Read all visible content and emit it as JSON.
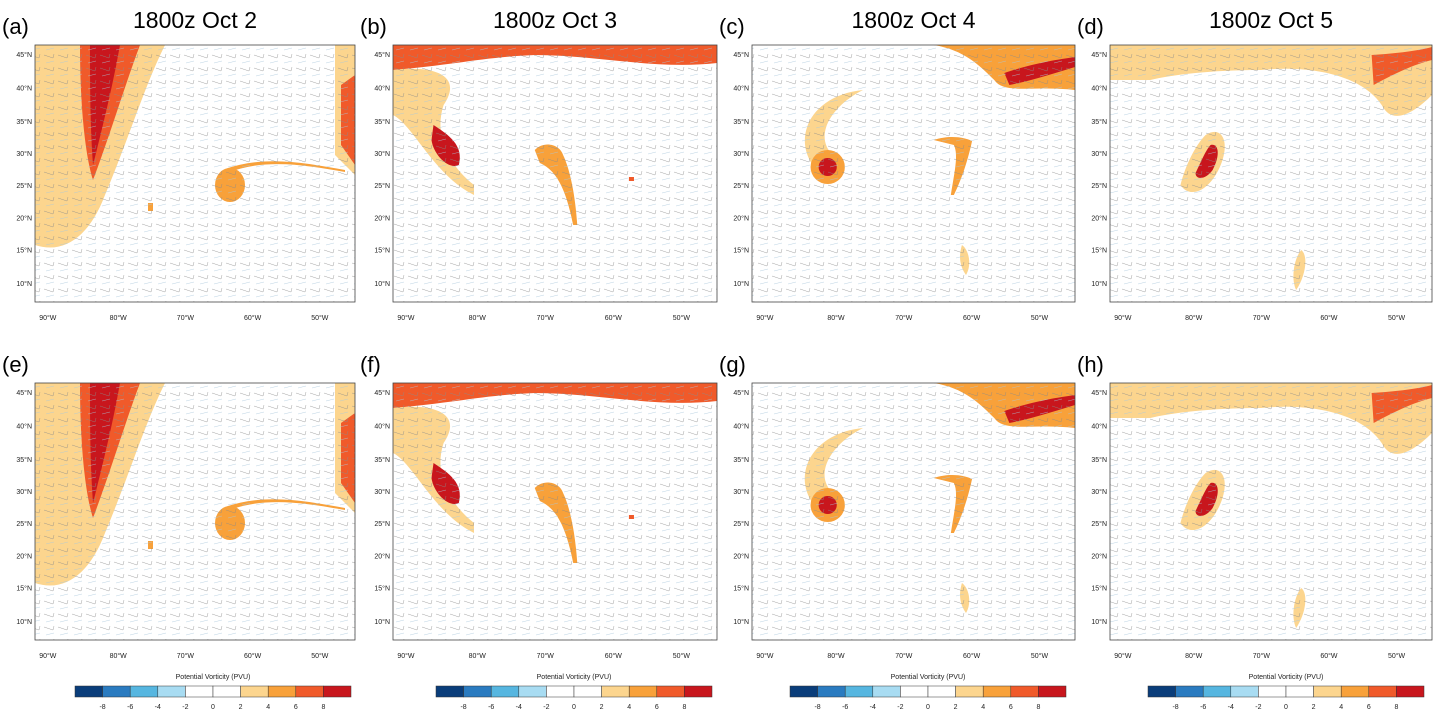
{
  "panels": [
    {
      "label": "(a)",
      "title": "1800z Oct 2"
    },
    {
      "label": "(b)",
      "title": "1800z Oct 3"
    },
    {
      "label": "(c)",
      "title": "1800z Oct 4"
    },
    {
      "label": "(d)",
      "title": "1800z Oct 5"
    },
    {
      "label": "(e)"
    },
    {
      "label": "(f)"
    },
    {
      "label": "(g)"
    },
    {
      "label": "(h)"
    }
  ],
  "lat_ticks": [
    "45°N",
    "40°N",
    "35°N",
    "30°N",
    "25°N",
    "20°N",
    "15°N",
    "10°N"
  ],
  "lon_ticks": [
    "90°W",
    "80°W",
    "70°W",
    "60°W",
    "50°W"
  ],
  "colorbar": {
    "title": "Potential Vorticity  (PVU)",
    "levels": [
      -8,
      -6,
      -4,
      -2,
      0,
      2,
      4,
      6,
      8
    ],
    "colors": [
      "#0a3d7a",
      "#2a7bc0",
      "#56b6e0",
      "#a8dcf2",
      "#ffffff",
      "#ffffff",
      "#fcd58e",
      "#f8a13a",
      "#f05a2a",
      "#c8161d"
    ]
  }
}
